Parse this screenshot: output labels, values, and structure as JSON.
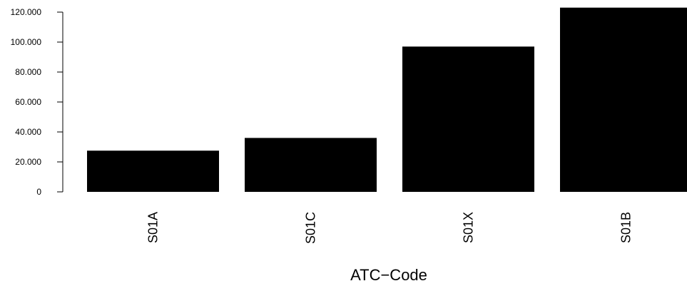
{
  "chart_data": {
    "type": "bar",
    "categories": [
      "S01A",
      "S01C",
      "S01X",
      "S01B"
    ],
    "values": [
      27500,
      36000,
      97000,
      123000
    ],
    "title": "",
    "xlabel": "ATC−Code",
    "ylabel": "",
    "ylim": [
      0,
      120000
    ],
    "y_ticks": [
      0,
      20000,
      40000,
      60000,
      80000,
      100000,
      120000
    ],
    "y_tick_labels": [
      "0",
      "20.000",
      "40.000",
      "60.000",
      "80.000",
      "100.000",
      "120.000"
    ],
    "grid": false,
    "legend": "none",
    "bar_color": "#000000"
  }
}
